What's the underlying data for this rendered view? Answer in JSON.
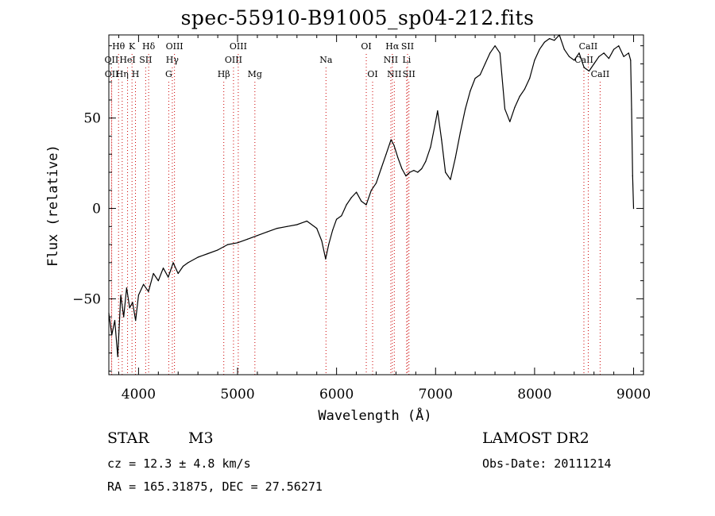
{
  "title": "spec-55910-B91005_sp04-212.fits",
  "info": {
    "class": "STAR",
    "subclass": "M3",
    "survey": "LAMOST DR2",
    "cz": "cz = 12.3 ± 4.8 km/s",
    "obs_date": "Obs-Date: 20111214",
    "radec": "RA = 165.31875, DEC =  27.56271"
  },
  "chart_data": {
    "type": "line",
    "title": "spec-55910-B91005_sp04-212.fits",
    "xlabel": "Wavelength (Å)",
    "ylabel": "Flux (relative)",
    "xlim": [
      3700,
      9100
    ],
    "ylim": [
      -92,
      96
    ],
    "xticks": [
      4000,
      5000,
      6000,
      7000,
      8000,
      9000
    ],
    "yticks": [
      -50,
      0,
      50
    ],
    "grid": false,
    "legend": "none",
    "line_color": "#000000",
    "marker_line_color": "#cc0000",
    "series": [
      {
        "x": [
          3700,
          3730,
          3760,
          3790,
          3820,
          3850,
          3880,
          3910,
          3940,
          3970,
          4000,
          4050,
          4100,
          4150,
          4200,
          4250,
          4300,
          4350,
          4400,
          4450,
          4500,
          4600,
          4700,
          4800,
          4900,
          5000,
          5100,
          5200,
          5300,
          5400,
          5500,
          5600,
          5700,
          5800,
          5850,
          5890,
          5920,
          5960,
          6000,
          6050,
          6100,
          6150,
          6200,
          6250,
          6300,
          6350,
          6400,
          6450,
          6500,
          6550,
          6580,
          6620,
          6660,
          6700,
          6740,
          6780,
          6820,
          6860,
          6900,
          6950,
          7000,
          7020,
          7060,
          7100,
          7150,
          7200,
          7250,
          7300,
          7350,
          7400,
          7450,
          7500,
          7550,
          7600,
          7650,
          7700,
          7750,
          7800,
          7850,
          7900,
          7950,
          8000,
          8050,
          8100,
          8150,
          8200,
          8250,
          8300,
          8350,
          8400,
          8450,
          8500,
          8550,
          8600,
          8650,
          8700,
          8750,
          8800,
          8850,
          8900,
          8950,
          8970,
          8980,
          8990,
          9000
        ],
        "y": [
          -58,
          -70,
          -62,
          -82,
          -48,
          -60,
          -44,
          -55,
          -52,
          -62,
          -48,
          -42,
          -46,
          -36,
          -40,
          -33,
          -38,
          -30,
          -36,
          -32,
          -30,
          -27,
          -25,
          -23,
          -20,
          -19,
          -17,
          -15,
          -13,
          -11,
          -10,
          -9,
          -7,
          -11,
          -18,
          -28,
          -20,
          -12,
          -6,
          -4,
          2,
          6,
          9,
          4,
          2,
          10,
          14,
          22,
          30,
          38,
          35,
          28,
          22,
          18,
          20,
          21,
          20,
          22,
          26,
          34,
          48,
          54,
          38,
          20,
          16,
          28,
          42,
          55,
          65,
          72,
          74,
          80,
          86,
          90,
          86,
          55,
          48,
          56,
          62,
          66,
          72,
          82,
          88,
          92,
          94,
          93,
          96,
          88,
          84,
          82,
          86,
          78,
          76,
          80,
          84,
          86,
          83,
          88,
          90,
          84,
          86,
          82,
          55,
          18,
          0
        ]
      }
    ],
    "spectral_lines": [
      {
        "label": "Hθ",
        "wave": 3798,
        "row": 0
      },
      {
        "label": "K",
        "wave": 3934,
        "row": 0
      },
      {
        "label": "Hδ",
        "wave": 4102,
        "row": 0
      },
      {
        "label": "OIII",
        "wave": 4363,
        "row": 0
      },
      {
        "label": "OIII",
        "wave": 5007,
        "row": 0
      },
      {
        "label": "OI",
        "wave": 6300,
        "row": 0
      },
      {
        "label": "Hα",
        "wave": 6563,
        "row": 0
      },
      {
        "label": "SII",
        "wave": 6717,
        "row": 0
      },
      {
        "label": "CaII",
        "wave": 8542,
        "row": 0
      },
      {
        "label": "OII",
        "wave": 3727,
        "row": 1
      },
      {
        "label": "HeI",
        "wave": 3889,
        "row": 1
      },
      {
        "label": "SII",
        "wave": 4072,
        "row": 1
      },
      {
        "label": "Hγ",
        "wave": 4341,
        "row": 1
      },
      {
        "label": "OIII",
        "wave": 4959,
        "row": 1
      },
      {
        "label": "Na",
        "wave": 5893,
        "row": 1
      },
      {
        "label": "NII",
        "wave": 6548,
        "row": 1
      },
      {
        "label": "Li",
        "wave": 6708,
        "row": 1
      },
      {
        "label": "CaII",
        "wave": 8498,
        "row": 1
      },
      {
        "label": "OII",
        "wave": 3729,
        "row": 2
      },
      {
        "label": "Hη",
        "wave": 3835,
        "row": 2
      },
      {
        "label": "H",
        "wave": 3969,
        "row": 2
      },
      {
        "label": "G",
        "wave": 4305,
        "row": 2
      },
      {
        "label": "Hβ",
        "wave": 4861,
        "row": 2
      },
      {
        "label": "Mg",
        "wave": 5175,
        "row": 2
      },
      {
        "label": "OI",
        "wave": 6364,
        "row": 2
      },
      {
        "label": "NII",
        "wave": 6583,
        "row": 2
      },
      {
        "label": "SII",
        "wave": 6731,
        "row": 2
      },
      {
        "label": "CaII",
        "wave": 8662,
        "row": 2
      }
    ]
  }
}
